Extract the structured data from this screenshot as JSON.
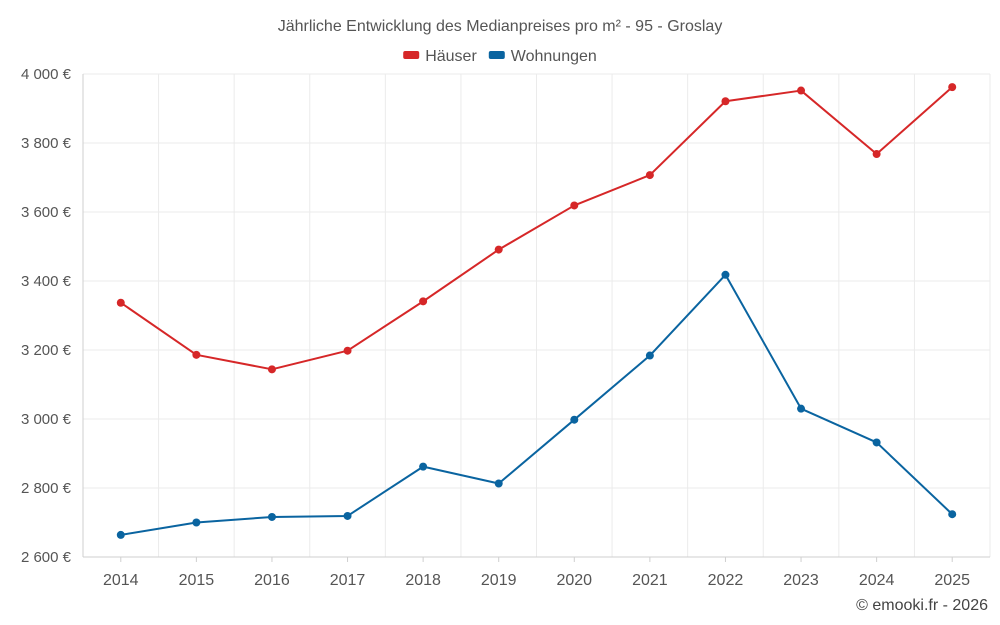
{
  "chart_data": {
    "type": "line",
    "title": "Jährliche Entwicklung des Medianpreises pro m² - 95 - Groslay",
    "categories": [
      "2014",
      "2015",
      "2016",
      "2017",
      "2018",
      "2019",
      "2020",
      "2021",
      "2022",
      "2023",
      "2024",
      "2025"
    ],
    "series": [
      {
        "name": "Häuser",
        "color": "#d62728",
        "values": [
          3337,
          3186,
          3144,
          3198,
          3341,
          3491,
          3619,
          3707,
          3921,
          3952,
          3768,
          3962
        ]
      },
      {
        "name": "Wohnungen",
        "color": "#0a64a0",
        "values": [
          2664,
          2700,
          2716,
          2719,
          2862,
          2813,
          2998,
          3184,
          3418,
          3030,
          2932,
          2724
        ]
      }
    ],
    "ylim": [
      2600,
      4000
    ],
    "yticks": [
      2600,
      2800,
      3000,
      3200,
      3400,
      3600,
      3800,
      4000
    ],
    "ytick_labels": [
      "2 600 €",
      "2 800 €",
      "3 000 €",
      "3 200 €",
      "3 400 €",
      "3 600 €",
      "3 800 €",
      "4 000 €"
    ],
    "xlabel": "",
    "ylabel": "",
    "grid": true,
    "legend_position": "top-center"
  },
  "credit": "© emooki.fr - 2026"
}
